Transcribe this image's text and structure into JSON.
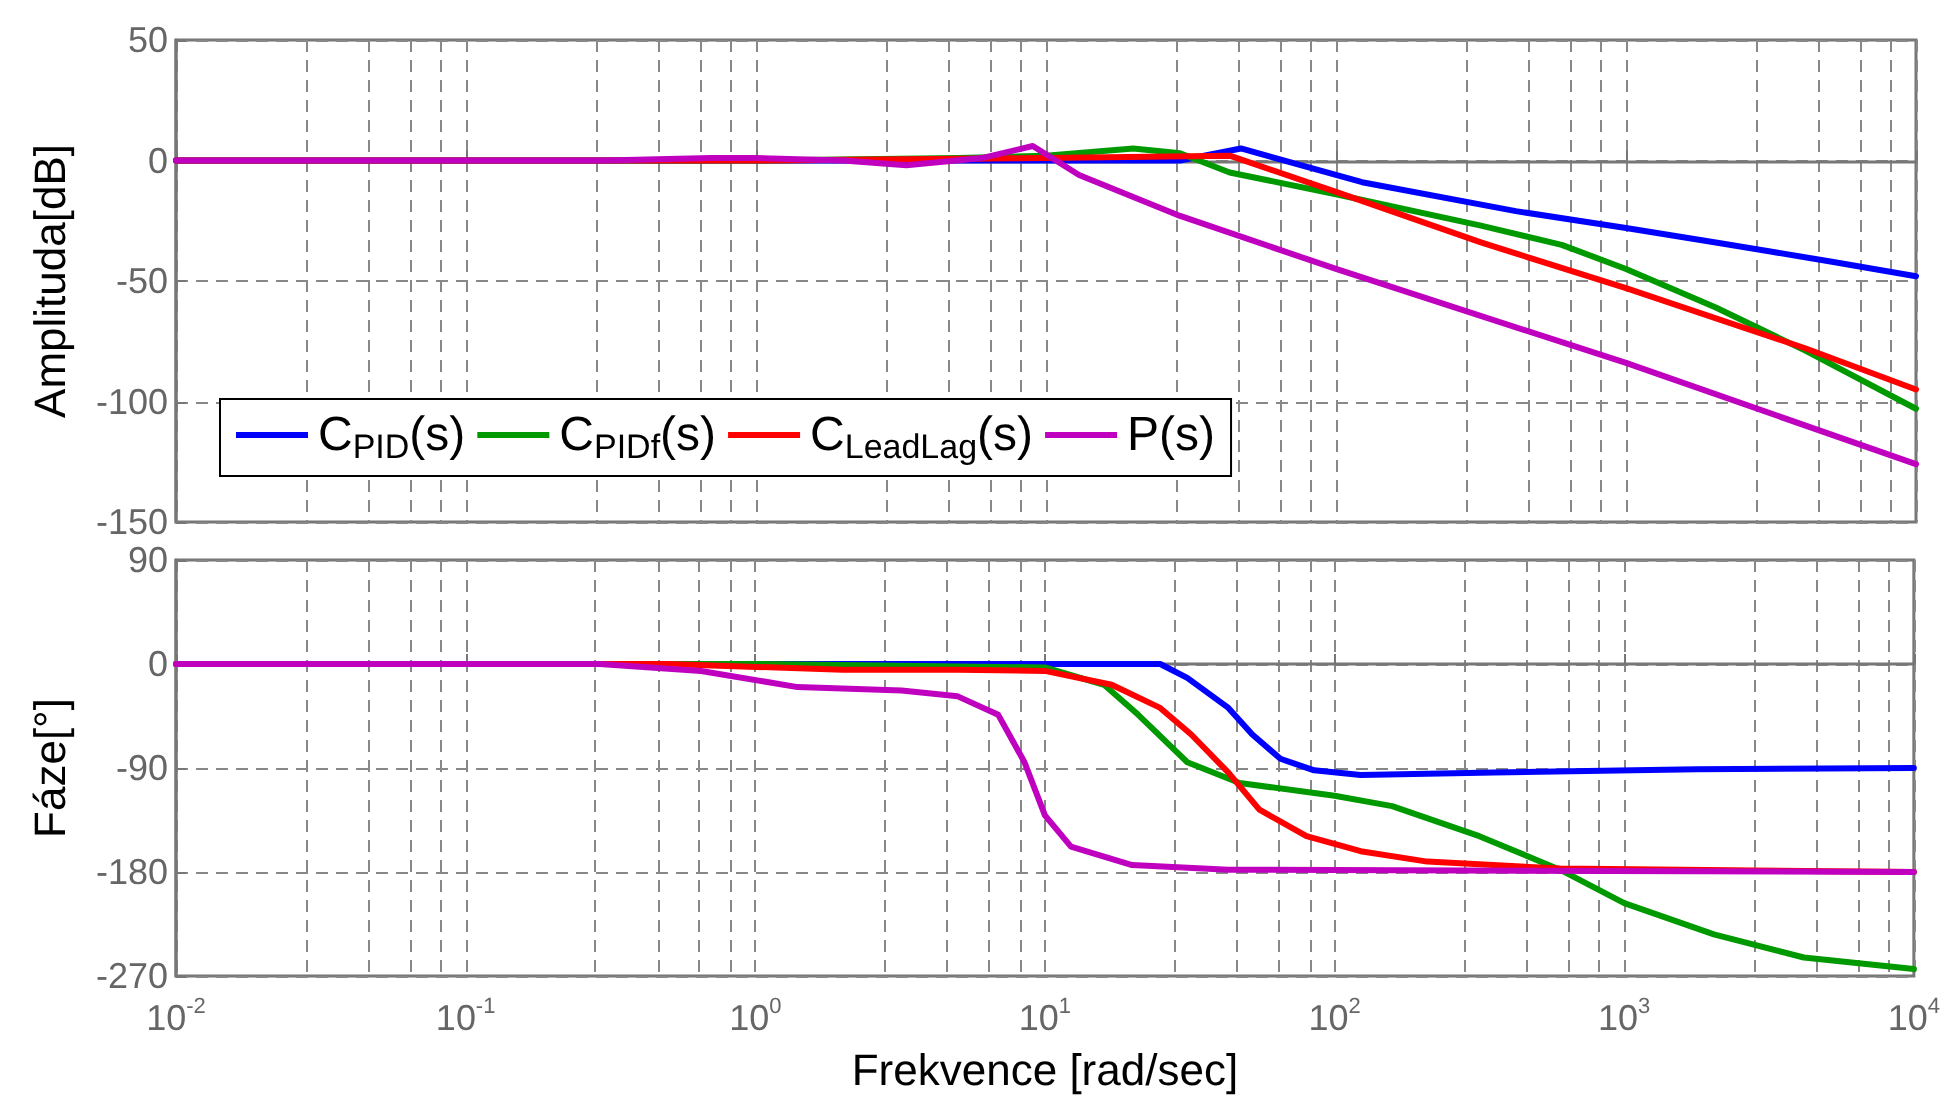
{
  "chart_data": [
    {
      "type": "line",
      "ylabel": "Amplituda[dB]",
      "log": "x",
      "xlim": [
        0.01,
        10000
      ],
      "ylim": [
        -150,
        50
      ],
      "yticks": [
        -150,
        -100,
        -50,
        0,
        50
      ],
      "tick_labels": "y",
      "grid": true,
      "legend": "bottom left",
      "marker": "none",
      "line_style": "solid",
      "series": [
        {
          "name": "C$_{PID}$(s)",
          "color": "#0000ff",
          "x": [
            0.01,
            1,
            10,
            29,
            47,
            123,
            417,
            1000,
            2040,
            5130,
            10000
          ],
          "values": [
            0,
            0,
            0,
            0,
            5,
            -9,
            -21,
            -28,
            -34,
            -42,
            -48
          ]
        },
        {
          "name": "C$_{PIDf}$(s)",
          "color": "#009900",
          "x": [
            0.01,
            1,
            5,
            10,
            20,
            29,
            43,
            100,
            316,
            600,
            1000,
            2040,
            4170,
            10000
          ],
          "values": [
            0,
            0,
            1,
            2,
            5,
            3,
            -5,
            -14,
            -27,
            -35,
            -45,
            -61,
            -79,
            -103
          ]
        },
        {
          "name": "C$_{LeadLag}$(s)",
          "color": "#ff0000",
          "x": [
            0.01,
            1,
            10,
            43,
            100,
            316,
            1000,
            4170,
            10000
          ],
          "values": [
            0,
            0,
            1,
            2,
            -13,
            -34,
            -53,
            -78,
            -95
          ]
        },
        {
          "name": "P(s)",
          "color": "#bf00bf",
          "x": [
            0.01,
            0.3,
            0.7,
            1,
            2,
            3.3,
            6,
            9,
            13,
            29,
            100,
            1000,
            10000
          ],
          "values": [
            0,
            0,
            1,
            1,
            0,
            -2,
            1,
            6,
            -6,
            -23,
            -45,
            -84,
            -126
          ]
        }
      ]
    },
    {
      "type": "line",
      "xlabel": "Frekvence [rad/sec]",
      "ylabel": "Fáze[°]",
      "log": "x",
      "xlim": [
        0.01,
        10000
      ],
      "xticks": [
        {
          "value": 0.01,
          "label": "10$^{-2}$"
        },
        {
          "value": 0.1,
          "label": "10$^{-1}$"
        },
        {
          "value": 1,
          "label": "10$^{0}$"
        },
        {
          "value": 10,
          "label": "10$^{1}$"
        },
        {
          "value": 100,
          "label": "10$^{2}$"
        },
        {
          "value": 1000,
          "label": "10$^{3}$"
        },
        {
          "value": 10000,
          "label": "10$^{4}$"
        }
      ],
      "ylim": [
        -270,
        90
      ],
      "yticks": [
        -270,
        -180,
        -90,
        0,
        90
      ],
      "grid": true,
      "marker": "none",
      "line_style": "solid",
      "series": [
        {
          "color": "#0000ff",
          "x": [
            0.01,
            10,
            25,
            31,
            43,
            52,
            65,
            85,
            123,
            355,
            1780,
            10000
          ],
          "values": [
            0,
            0,
            0,
            -12,
            -38,
            -61,
            -82,
            -92,
            -96,
            -94,
            -91,
            -90
          ]
        },
        {
          "color": "#009900",
          "x": [
            0.01,
            1,
            10,
            16,
            21,
            31,
            47,
            100,
            158,
            316,
            600,
            1000,
            2040,
            4170,
            10000
          ],
          "values": [
            0,
            0,
            -3,
            -18,
            -44,
            -85,
            -103,
            -114,
            -123,
            -149,
            -178,
            -207,
            -234,
            -254,
            -264
          ]
        },
        {
          "color": "#ff0000",
          "x": [
            0.01,
            0.5,
            2,
            5,
            10,
            17,
            25,
            32,
            43,
            55,
            80,
            123,
            209,
            600,
            10000
          ],
          "values": [
            0,
            0,
            -5,
            -5,
            -6,
            -18,
            -38,
            -61,
            -94,
            -126,
            -149,
            -162,
            -171,
            -177,
            -180
          ]
        },
        {
          "color": "#bf00bf",
          "x": [
            0.01,
            0.29,
            0.65,
            1.4,
            3.2,
            5,
            6.9,
            8.5,
            10,
            12.3,
            20,
            43,
            10000
          ],
          "values": [
            0,
            0,
            -6,
            -20,
            -23,
            -28,
            -44,
            -85,
            -131,
            -158,
            -174,
            -178,
            -180
          ]
        }
      ]
    }
  ]
}
